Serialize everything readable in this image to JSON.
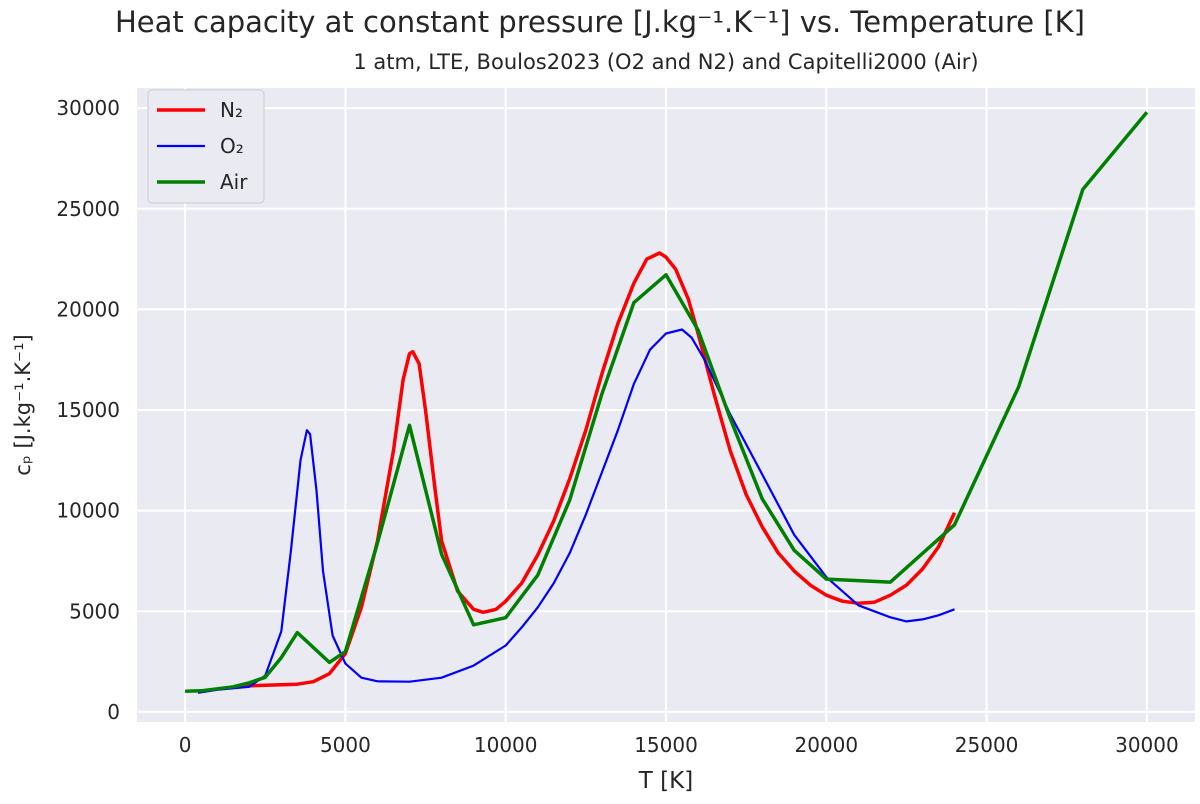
{
  "chart_data": {
    "type": "line",
    "title": "Heat capacity at constant pressure [J.kg⁻¹.K⁻¹] vs. Temperature [K]",
    "subtitle": "1 atm, LTE, Boulos2023 (O2 and N2) and Capitelli2000 (Air)",
    "xlabel": "T [K]",
    "ylabel": "cₚ [J.kg⁻¹.K⁻¹]",
    "xlim": [
      -1500,
      31500
    ],
    "ylim": [
      -500,
      31000
    ],
    "xticks": [
      0,
      5000,
      10000,
      15000,
      20000,
      25000,
      30000
    ],
    "yticks": [
      0,
      5000,
      10000,
      15000,
      20000,
      25000,
      30000
    ],
    "grid": true,
    "legend_position": "top-left",
    "series": [
      {
        "name": "N₂",
        "color": "#ff0000",
        "x": [
          1500,
          2000,
          3000,
          3500,
          4000,
          4500,
          5000,
          5500,
          6000,
          6500,
          6800,
          7000,
          7100,
          7300,
          7500,
          7800,
          8000,
          8500,
          9000,
          9300,
          9700,
          10000,
          10500,
          11000,
          11500,
          12000,
          12500,
          13000,
          13500,
          14000,
          14400,
          14800,
          15000,
          15300,
          15700,
          16000,
          16500,
          17000,
          17500,
          18000,
          18500,
          19000,
          19500,
          20000,
          20500,
          21000,
          21500,
          22000,
          22500,
          23000,
          23500,
          24000
        ],
        "y": [
          1250,
          1300,
          1350,
          1380,
          1500,
          1900,
          2900,
          5200,
          8500,
          13000,
          16500,
          17800,
          17900,
          17300,
          15000,
          11000,
          8500,
          6000,
          5100,
          4950,
          5100,
          5500,
          6400,
          7800,
          9500,
          11600,
          14000,
          16800,
          19300,
          21300,
          22500,
          22800,
          22600,
          22000,
          20500,
          18800,
          15800,
          13000,
          10800,
          9200,
          7900,
          7000,
          6300,
          5800,
          5500,
          5400,
          5450,
          5800,
          6300,
          7100,
          8200,
          9900
        ]
      },
      {
        "name": "O₂",
        "color": "#0000ff",
        "x": [
          400,
          1000,
          2000,
          2500,
          3000,
          3300,
          3600,
          3800,
          3900,
          4100,
          4300,
          4600,
          5000,
          5500,
          6000,
          7000,
          8000,
          9000,
          10000,
          10500,
          11000,
          11500,
          12000,
          12500,
          13000,
          13500,
          14000,
          14500,
          15000,
          15500,
          15800,
          16200,
          17000,
          18000,
          19000,
          20000,
          21000,
          22000,
          22500,
          23000,
          23500,
          24000
        ],
        "y": [
          950,
          1100,
          1250,
          1800,
          4000,
          8000,
          12500,
          14000,
          13800,
          11000,
          7000,
          3800,
          2400,
          1700,
          1520,
          1500,
          1700,
          2300,
          3300,
          4200,
          5200,
          6400,
          7900,
          9800,
          11900,
          14000,
          16300,
          18000,
          18800,
          19000,
          18600,
          17500,
          14800,
          11800,
          8800,
          6700,
          5300,
          4700,
          4500,
          4600,
          4800,
          5100
        ]
      },
      {
        "name": "Air",
        "color": "#008000",
        "x": [
          0,
          500,
          1000,
          1500,
          2000,
          2500,
          3000,
          3500,
          4500,
          5000,
          6000,
          7000,
          8000,
          9000,
          10000,
          11000,
          12000,
          13000,
          14000,
          15000,
          16000,
          17000,
          18000,
          19000,
          20000,
          22000,
          24000,
          26000,
          28000,
          30000
        ],
        "y": [
          1030,
          1050,
          1150,
          1250,
          1450,
          1720,
          2700,
          3940,
          2460,
          3000,
          8400,
          14240,
          7830,
          4330,
          4680,
          6800,
          10540,
          15800,
          20340,
          21720,
          18970,
          14600,
          10590,
          8030,
          6600,
          6450,
          9300,
          16160,
          25960,
          29800
        ]
      }
    ]
  }
}
